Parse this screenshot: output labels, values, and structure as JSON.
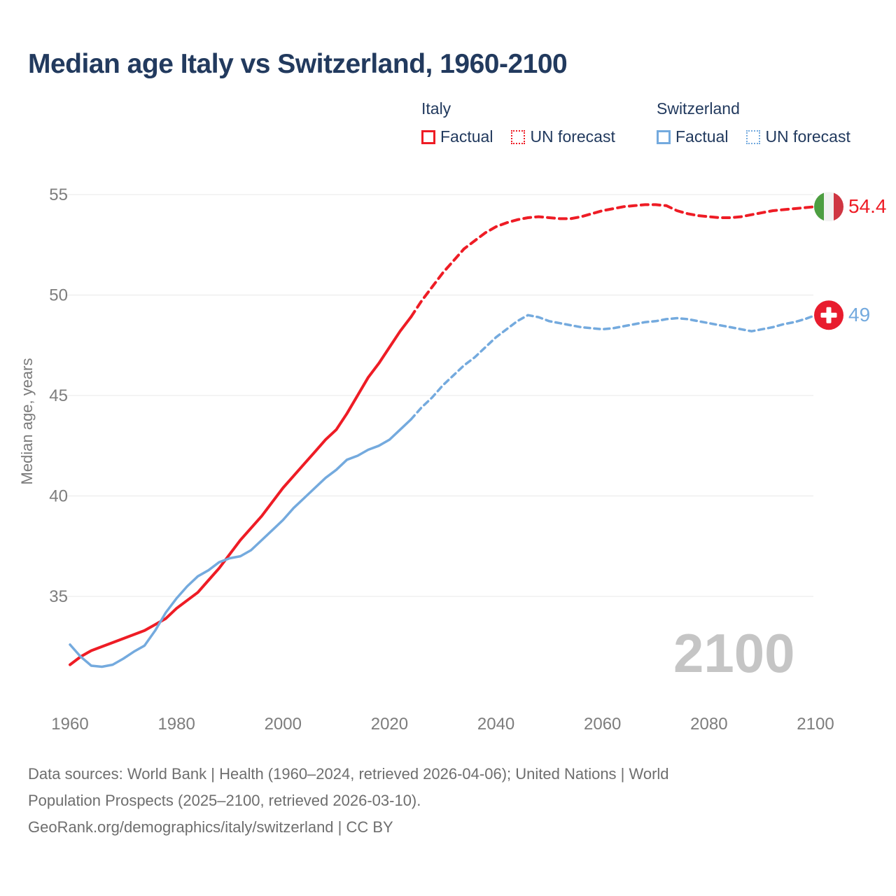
{
  "header": {
    "title": "Median age Italy vs Switzerland, 1960-2100"
  },
  "legend": {
    "text_color": "#223a5e",
    "groups": [
      {
        "title": "Italy",
        "color": "#ee1c25",
        "items": [
          {
            "label": "Factual",
            "line_style": "solid"
          },
          {
            "label": "UN forecast",
            "line_style": "dotted"
          }
        ]
      },
      {
        "title": "Switzerland",
        "color": "#74aade",
        "items": [
          {
            "label": "Factual",
            "line_style": "solid"
          },
          {
            "label": "UN forecast",
            "line_style": "dotted"
          }
        ]
      }
    ]
  },
  "watermark": "2100",
  "footer": {
    "lines": [
      "Data sources: World Bank | Health (1960–2024, retrieved 2026-04-06); United Nations | World",
      "Population Prospects (2025–2100, retrieved 2026-03-10).",
      "GeoRank.org/demographics/italy/switzerland | CC BY"
    ]
  },
  "chart_data": {
    "type": "line",
    "title": "Median age Italy vs Switzerland, 1960-2100",
    "xlabel": "",
    "ylabel": "Median age, years",
    "xlim": [
      1960,
      2100
    ],
    "ylim": [
      31,
      56
    ],
    "xticks": [
      1960,
      1980,
      2000,
      2020,
      2040,
      2060,
      2080,
      2100
    ],
    "yticks": [
      35,
      40,
      45,
      50,
      55
    ],
    "grid": "horizontal-only",
    "legend_position": "top",
    "colors": {
      "grid": "#e9e9e9",
      "tick": "#7d7d7d",
      "axis_label": "#7b7b7b"
    },
    "series": [
      {
        "id": "italy-factual",
        "name": "Italy — Factual",
        "color": "#ee1c25",
        "style": "solid",
        "width": 4,
        "x": [
          1960,
          1962,
          1964,
          1966,
          1968,
          1970,
          1972,
          1974,
          1976,
          1978,
          1980,
          1982,
          1984,
          1986,
          1988,
          1990,
          1992,
          1994,
          1996,
          1998,
          2000,
          2002,
          2004,
          2006,
          2008,
          2010,
          2012,
          2014,
          2016,
          2018,
          2020,
          2022,
          2024
        ],
        "y": [
          31.6,
          32.0,
          32.3,
          32.5,
          32.7,
          32.9,
          33.1,
          33.3,
          33.6,
          33.9,
          34.4,
          34.8,
          35.2,
          35.8,
          36.4,
          37.1,
          37.8,
          38.4,
          39.0,
          39.7,
          40.4,
          41.0,
          41.6,
          42.2,
          42.8,
          43.3,
          44.1,
          45.0,
          45.9,
          46.6,
          47.4,
          48.2,
          48.9
        ]
      },
      {
        "id": "italy-forecast",
        "name": "Italy — UN forecast",
        "color": "#ee1c25",
        "style": "dashed",
        "width": 4,
        "dash": "10 7",
        "x": [
          2024,
          2026,
          2028,
          2030,
          2032,
          2034,
          2036,
          2038,
          2040,
          2042,
          2044,
          2046,
          2048,
          2050,
          2052,
          2054,
          2056,
          2058,
          2060,
          2062,
          2064,
          2066,
          2068,
          2070,
          2072,
          2074,
          2076,
          2078,
          2080,
          2082,
          2084,
          2086,
          2088,
          2090,
          2092,
          2094,
          2096,
          2098,
          2100
        ],
        "y": [
          48.9,
          49.7,
          50.4,
          51.1,
          51.7,
          52.3,
          52.7,
          53.1,
          53.4,
          53.6,
          53.75,
          53.85,
          53.9,
          53.85,
          53.8,
          53.8,
          53.9,
          54.05,
          54.2,
          54.3,
          54.4,
          54.45,
          54.5,
          54.5,
          54.45,
          54.2,
          54.05,
          53.95,
          53.9,
          53.85,
          53.85,
          53.9,
          54.0,
          54.1,
          54.2,
          54.25,
          54.3,
          54.35,
          54.4
        ]
      },
      {
        "id": "switzerland-factual",
        "name": "Switzerland — Factual",
        "color": "#74aade",
        "style": "solid",
        "width": 3.5,
        "x": [
          1960,
          1962,
          1964,
          1966,
          1968,
          1970,
          1972,
          1974,
          1976,
          1978,
          1980,
          1982,
          1984,
          1986,
          1988,
          1990,
          1992,
          1994,
          1996,
          1998,
          2000,
          2002,
          2004,
          2006,
          2008,
          2010,
          2012,
          2014,
          2016,
          2018,
          2020,
          2022,
          2024
        ],
        "y": [
          32.6,
          32.0,
          31.55,
          31.5,
          31.6,
          31.9,
          32.25,
          32.55,
          33.3,
          34.2,
          34.9,
          35.5,
          36.0,
          36.3,
          36.7,
          36.9,
          37.0,
          37.3,
          37.8,
          38.3,
          38.8,
          39.4,
          39.9,
          40.4,
          40.9,
          41.3,
          41.8,
          42.0,
          42.3,
          42.5,
          42.8,
          43.3,
          43.8
        ]
      },
      {
        "id": "switzerland-forecast",
        "name": "Switzerland — UN forecast",
        "color": "#74aade",
        "style": "dashed",
        "width": 3.5,
        "dash": "8 6",
        "x": [
          2024,
          2026,
          2028,
          2030,
          2032,
          2034,
          2036,
          2038,
          2040,
          2042,
          2044,
          2046,
          2048,
          2050,
          2052,
          2054,
          2056,
          2058,
          2060,
          2062,
          2064,
          2066,
          2068,
          2070,
          2072,
          2074,
          2076,
          2078,
          2080,
          2082,
          2084,
          2086,
          2088,
          2090,
          2092,
          2094,
          2096,
          2098,
          2100
        ],
        "y": [
          43.8,
          44.4,
          44.9,
          45.5,
          46.0,
          46.5,
          46.9,
          47.4,
          47.9,
          48.3,
          48.7,
          49.0,
          48.9,
          48.7,
          48.6,
          48.5,
          48.4,
          48.35,
          48.3,
          48.35,
          48.45,
          48.55,
          48.65,
          48.7,
          48.8,
          48.85,
          48.8,
          48.7,
          48.6,
          48.5,
          48.4,
          48.3,
          48.2,
          48.3,
          48.4,
          48.55,
          48.65,
          48.8,
          49.0
        ]
      }
    ],
    "end_labels": [
      {
        "text": "54.4",
        "value": 54.4,
        "color": "#ee1c25",
        "flag": "italy"
      },
      {
        "text": "49",
        "value": 49,
        "color": "#74aade",
        "flag": "switzerland"
      }
    ],
    "flags": {
      "italy": {
        "stripes": [
          "#4d9e41",
          "#f2f2f2",
          "#cf3642"
        ]
      },
      "switzerland": {
        "circle": "#e81c2e",
        "cross": "#ffffff"
      }
    }
  }
}
